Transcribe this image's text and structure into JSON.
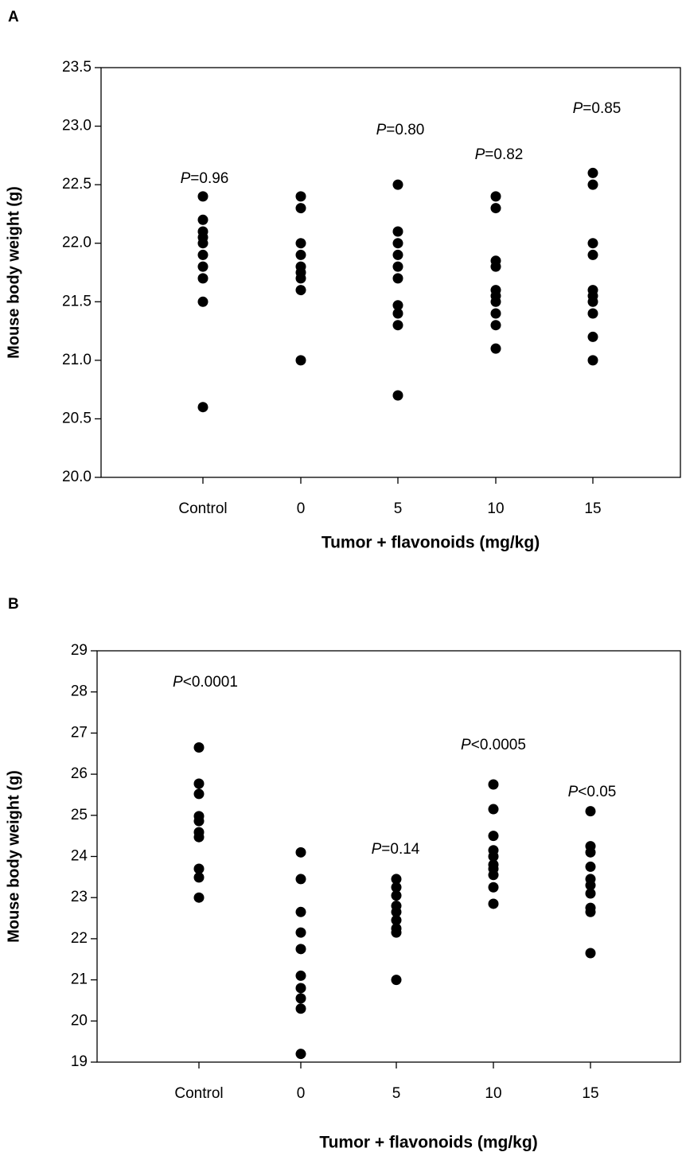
{
  "chart_data": [
    {
      "type": "scatter",
      "panel": "A",
      "xlabel": "Tumor + flavonoids (mg/kg)",
      "ylabel": "Mouse body weight (g)",
      "categories": [
        "Control",
        "0",
        "5",
        "10",
        "15"
      ],
      "values": [
        [
          22.4,
          22.2,
          22.1,
          22.05,
          22.0,
          21.9,
          21.8,
          21.7,
          21.5,
          20.6
        ],
        [
          22.4,
          22.3,
          22.0,
          21.9,
          21.8,
          21.75,
          21.7,
          21.6,
          21.0
        ],
        [
          22.5,
          22.1,
          22.0,
          21.9,
          21.8,
          21.7,
          21.47,
          21.4,
          21.3,
          20.7
        ],
        [
          22.4,
          22.3,
          21.85,
          21.8,
          21.6,
          21.55,
          21.5,
          21.4,
          21.3,
          21.1
        ],
        [
          22.6,
          22.5,
          22.0,
          21.9,
          21.6,
          21.55,
          21.5,
          21.4,
          21.2,
          21.0
        ]
      ],
      "annotations": [
        "P=0.96",
        "P=0.80",
        "P=0.82",
        "P=0.85"
      ],
      "color": "#000000",
      "ylim": [
        20.0,
        23.5
      ],
      "yticks": [
        {
          "value": 20,
          "label": "20.0"
        },
        20.5,
        {
          "value": 21,
          "label": "21.0"
        },
        21.5,
        {
          "value": 22,
          "label": "22.0"
        },
        22.5,
        {
          "value": 23,
          "label": "23.0"
        },
        23.5
      ]
    },
    {
      "type": "scatter",
      "panel": "B",
      "xlabel": "Tumor + flavonoids (mg/kg)",
      "ylabel": "Mouse body weight (g)",
      "categories": [
        "Control",
        "0",
        "5",
        "10",
        "15"
      ],
      "values": [
        [
          26.65,
          25.77,
          25.52,
          24.98,
          24.86,
          24.59,
          24.47,
          23.7,
          23.49,
          23.0
        ],
        [
          24.1,
          23.45,
          22.65,
          22.15,
          21.75,
          21.1,
          20.8,
          20.55,
          20.3,
          19.2
        ],
        [
          23.45,
          23.25,
          23.05,
          22.8,
          22.65,
          22.45,
          22.25,
          22.15,
          21.0
        ],
        [
          25.75,
          25.15,
          24.5,
          24.15,
          24.0,
          23.8,
          23.7,
          23.55,
          23.25,
          22.85
        ],
        [
          25.1,
          24.25,
          24.1,
          23.75,
          23.45,
          23.3,
          23.1,
          22.75,
          22.65,
          21.65
        ]
      ],
      "annotations": [
        "P<0.0001",
        "P=0.14",
        "P<0.0005",
        "P<0.05"
      ],
      "color": "#000000",
      "ylim": [
        19,
        29
      ],
      "yticks": [
        19,
        20,
        21,
        22,
        23,
        24,
        25,
        26,
        27,
        28,
        29
      ]
    }
  ]
}
